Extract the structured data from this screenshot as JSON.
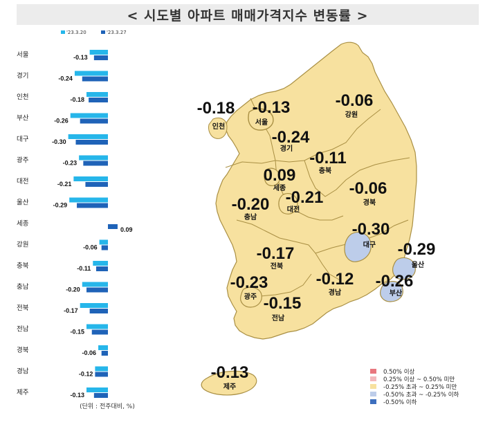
{
  "title": "< 시도별 아파트 매매가격지수 변동률 >",
  "chart_data": {
    "type": "bar",
    "orientation": "horizontal",
    "categories": [
      "서울",
      "경기",
      "인천",
      "부산",
      "대구",
      "광주",
      "대전",
      "울산",
      "세종",
      "강원",
      "충북",
      "충남",
      "전북",
      "전남",
      "경북",
      "경남",
      "제주"
    ],
    "series": [
      {
        "name": "'23.3.20",
        "color": "#26b6ea",
        "values": [
          -0.17,
          -0.31,
          -0.2,
          -0.35,
          -0.37,
          -0.27,
          -0.32,
          -0.36,
          0.0,
          -0.08,
          -0.14,
          -0.24,
          -0.26,
          -0.2,
          -0.09,
          -0.12,
          -0.2
        ]
      },
      {
        "name": "'23.3.27",
        "color": "#1f63b8",
        "values": [
          -0.13,
          -0.24,
          -0.18,
          -0.26,
          -0.3,
          -0.23,
          -0.21,
          -0.29,
          0.09,
          -0.06,
          -0.11,
          -0.2,
          -0.17,
          -0.15,
          -0.06,
          -0.12,
          -0.13
        ]
      }
    ],
    "data_labels": [
      "-0.13",
      "-0.24",
      "-0.18",
      "-0.26",
      "-0.30",
      "-0.23",
      "-0.21",
      "-0.29",
      "0.09",
      "-0.06",
      "-0.11",
      "-0.20",
      "-0.17",
      "-0.15",
      "-0.06",
      "-0.12",
      "-0.13"
    ],
    "legend_position": "top",
    "grid": false
  },
  "unit_note": "(단위 : 전주대비, %)",
  "map": {
    "colors": {
      "land": "#f7e19f",
      "blue": "#bdcdea",
      "border": "#a98f43"
    },
    "labels": [
      {
        "region": "서울",
        "value": "-0.13"
      },
      {
        "region": "인천",
        "value": "-0.18"
      },
      {
        "region": "경기",
        "value": "-0.24"
      },
      {
        "region": "강원",
        "value": "-0.06"
      },
      {
        "region": "충북",
        "value": "-0.11"
      },
      {
        "region": "세종",
        "value": "0.09"
      },
      {
        "region": "대전",
        "value": "-0.21"
      },
      {
        "region": "충남",
        "value": "-0.20"
      },
      {
        "region": "경북",
        "value": "-0.06"
      },
      {
        "region": "대구",
        "value": "-0.30"
      },
      {
        "region": "울산",
        "value": "-0.29"
      },
      {
        "region": "전북",
        "value": "-0.17"
      },
      {
        "region": "광주",
        "value": "-0.23"
      },
      {
        "region": "경남",
        "value": "-0.12"
      },
      {
        "region": "부산",
        "value": "-0.26"
      },
      {
        "region": "전남",
        "value": "-0.15"
      },
      {
        "region": "제주",
        "value": "-0.13"
      }
    ]
  },
  "legend": [
    {
      "label": "0.50% 이상",
      "color": "#e8777f"
    },
    {
      "label": "0.25% 이상 ~ 0.50% 미만",
      "color": "#f3b9bd"
    },
    {
      "label": "-0.25% 초과 ~ 0.25% 미만",
      "color": "#f7e19f"
    },
    {
      "label": "-0.50% 초과 ~ -0.25% 이하",
      "color": "#bdcdea"
    },
    {
      "label": "-0.50% 이하",
      "color": "#3d6fbe"
    }
  ]
}
